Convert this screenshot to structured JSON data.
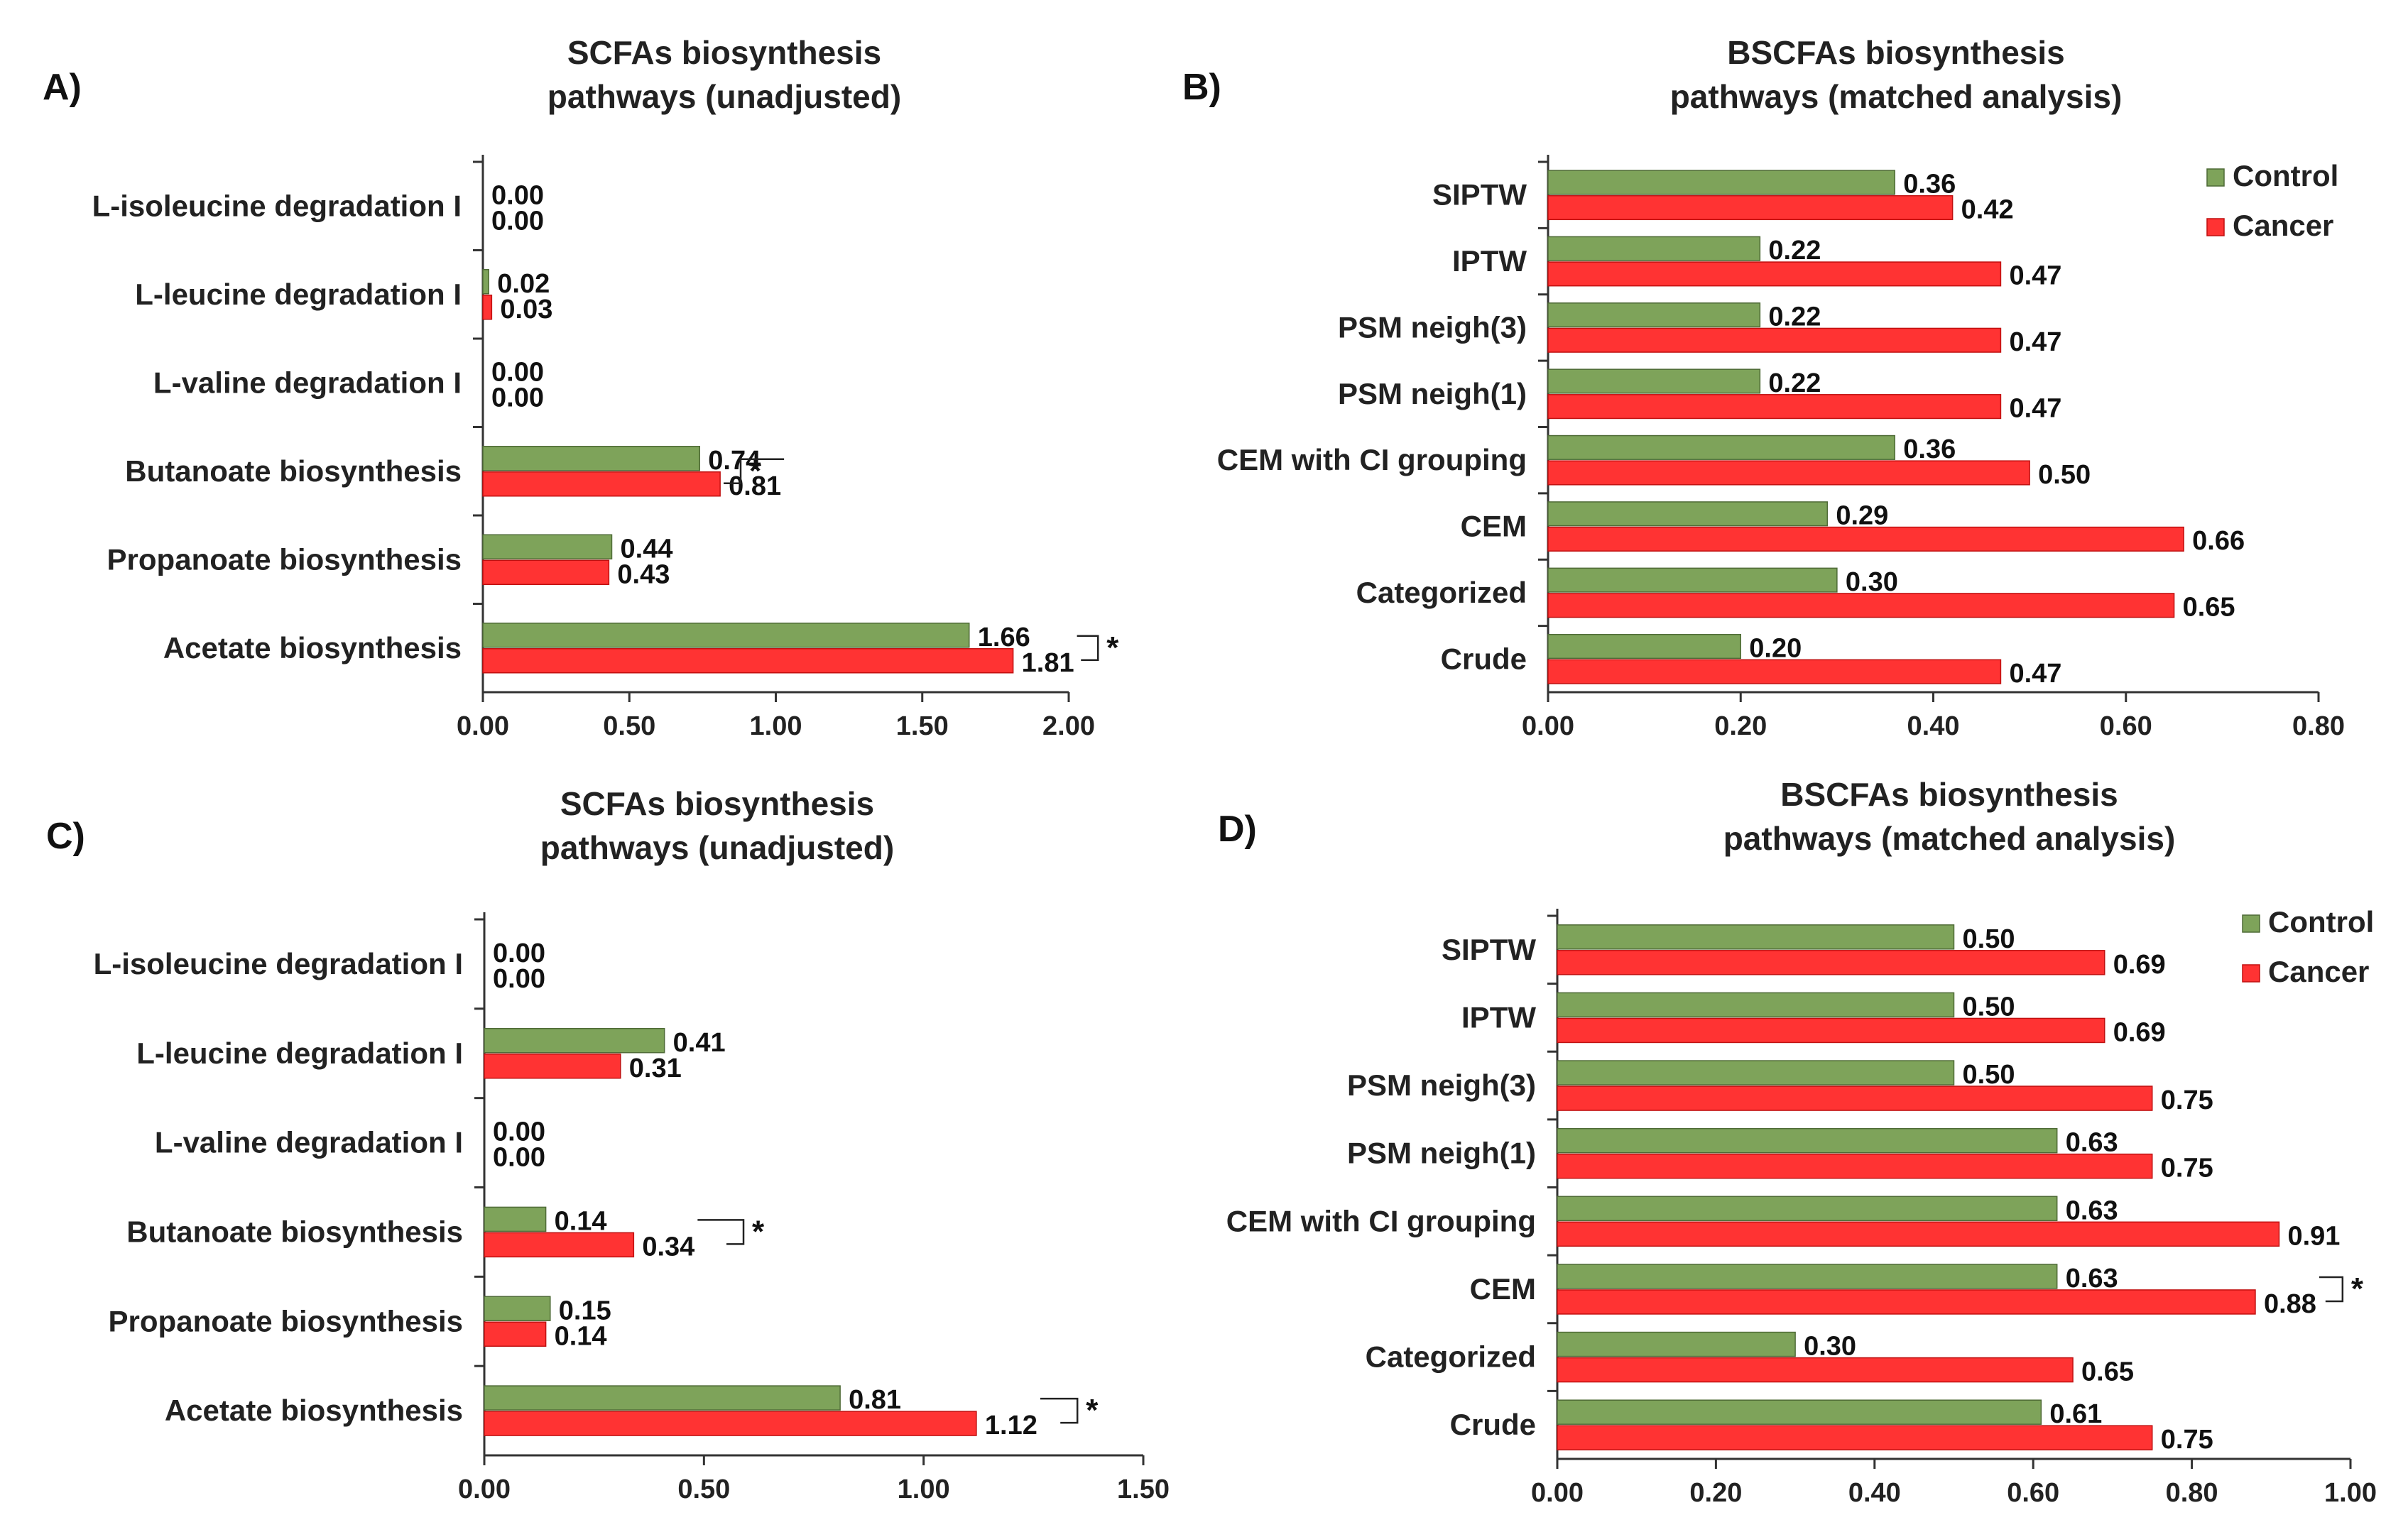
{
  "colors": {
    "control": "#7ea35a",
    "cancer": "#ff3333",
    "control_edge": "#4f6b37",
    "cancer_edge": "#c01010",
    "axis": "#333333"
  },
  "chart_data": [
    {
      "id": "A",
      "panel_label": "A)",
      "type": "bar",
      "orientation": "horizontal",
      "title_lines": [
        "SCFAs biosynthesis",
        "pathways (unadjusted)"
      ],
      "categories": [
        "L-isoleucine degradation I",
        "L-leucine degradation I",
        "L-valine degradation I",
        "Butanoate biosynthesis",
        "Propanoate biosynthesis",
        "Acetate biosynthesis"
      ],
      "series": [
        {
          "key": "control",
          "values": [
            0.0,
            0.02,
            0.0,
            0.74,
            0.44,
            1.66
          ],
          "labels": [
            "0.00",
            "0.02",
            "0.00",
            "0.74",
            "0.44",
            "1.66"
          ]
        },
        {
          "key": "cancer",
          "values": [
            0.0,
            0.03,
            0.0,
            0.81,
            0.43,
            1.81
          ],
          "labels": [
            "0.00",
            "0.03",
            "0.00",
            "0.81",
            "0.43",
            "1.81"
          ]
        }
      ],
      "xlim": [
        0,
        2
      ],
      "xticks": [
        "0.00",
        "0.50",
        "1.00",
        "1.50",
        "2.00"
      ],
      "significance": [
        {
          "category": 3,
          "at": 0.88,
          "label": "*"
        },
        {
          "category": 5,
          "at": 2.1,
          "label": "*"
        }
      ],
      "legend": null
    },
    {
      "id": "B",
      "panel_label": "B)",
      "type": "bar",
      "orientation": "horizontal",
      "title_lines": [
        "BSCFAs biosynthesis",
        "pathways (matched analysis)"
      ],
      "categories": [
        "SIPTW",
        "IPTW",
        "PSM neigh(3)",
        "PSM neigh(1)",
        "CEM with CI grouping",
        "CEM",
        "Categorized",
        "Crude"
      ],
      "series": [
        {
          "key": "control",
          "values": [
            0.36,
            0.22,
            0.22,
            0.22,
            0.36,
            0.29,
            0.3,
            0.2
          ],
          "labels": [
            "0.36",
            "0.22",
            "0.22",
            "0.22",
            "0.36",
            "0.29",
            "0.30",
            "0.20"
          ]
        },
        {
          "key": "cancer",
          "values": [
            0.42,
            0.47,
            0.47,
            0.47,
            0.5,
            0.66,
            0.65,
            0.47
          ],
          "labels": [
            "0.42",
            "0.47",
            "0.47",
            "0.47",
            "0.50",
            "0.66",
            "0.65",
            "0.47"
          ]
        }
      ],
      "xlim": [
        0,
        0.8
      ],
      "xticks": [
        "0.00",
        "0.20",
        "0.40",
        "0.60",
        "0.80"
      ],
      "significance": [],
      "legend": {
        "position": "top-right",
        "items": [
          "Control",
          "Cancer"
        ]
      }
    },
    {
      "id": "C",
      "panel_label": "C)",
      "type": "bar",
      "orientation": "horizontal",
      "title_lines": [
        "SCFAs biosynthesis",
        "pathways (unadjusted)"
      ],
      "categories": [
        "L-isoleucine degradation I",
        "L-leucine degradation I",
        "L-valine degradation I",
        "Butanoate biosynthesis",
        "Propanoate biosynthesis",
        "Acetate biosynthesis"
      ],
      "series": [
        {
          "key": "control",
          "values": [
            0.0,
            0.41,
            0.0,
            0.14,
            0.15,
            0.81
          ],
          "labels": [
            "0.00",
            "0.41",
            "0.00",
            "0.14",
            "0.15",
            "0.81"
          ]
        },
        {
          "key": "cancer",
          "values": [
            0.0,
            0.31,
            0.0,
            0.34,
            0.14,
            1.12
          ],
          "labels": [
            "0.00",
            "0.31",
            "0.00",
            "0.34",
            "0.14",
            "1.12"
          ]
        }
      ],
      "xlim": [
        0,
        1.5
      ],
      "xticks": [
        "0.00",
        "0.50",
        "1.00",
        "1.50"
      ],
      "significance": [
        {
          "category": 3,
          "at": 0.59,
          "label": "*"
        },
        {
          "category": 5,
          "at": 1.35,
          "label": "*"
        }
      ],
      "legend": null
    },
    {
      "id": "D",
      "panel_label": "D)",
      "type": "bar",
      "orientation": "horizontal",
      "title_lines": [
        "BSCFAs biosynthesis",
        "pathways (matched analysis)"
      ],
      "categories": [
        "SIPTW",
        "IPTW",
        "PSM neigh(3)",
        "PSM neigh(1)",
        "CEM with CI grouping",
        "CEM",
        "Categorized",
        "Crude"
      ],
      "series": [
        {
          "key": "control",
          "values": [
            0.5,
            0.5,
            0.5,
            0.63,
            0.63,
            0.63,
            0.3,
            0.61
          ],
          "labels": [
            "0.50",
            "0.50",
            "0.50",
            "0.63",
            "0.63",
            "0.63",
            "0.30",
            "0.61"
          ]
        },
        {
          "key": "cancer",
          "values": [
            0.69,
            0.69,
            0.75,
            0.75,
            0.91,
            0.88,
            0.65,
            0.75
          ],
          "labels": [
            "0.69",
            "0.69",
            "0.75",
            "0.75",
            "0.91",
            "0.88",
            "0.65",
            "0.75"
          ]
        }
      ],
      "xlim": [
        0,
        1.0
      ],
      "xticks": [
        "0.00",
        "0.20",
        "0.40",
        "0.60",
        "0.80",
        "1.00"
      ],
      "significance": [
        {
          "category": 5,
          "at": 0.99,
          "label": "*"
        }
      ],
      "legend": {
        "position": "top-right",
        "items": [
          "Control",
          "Cancer"
        ]
      }
    }
  ]
}
